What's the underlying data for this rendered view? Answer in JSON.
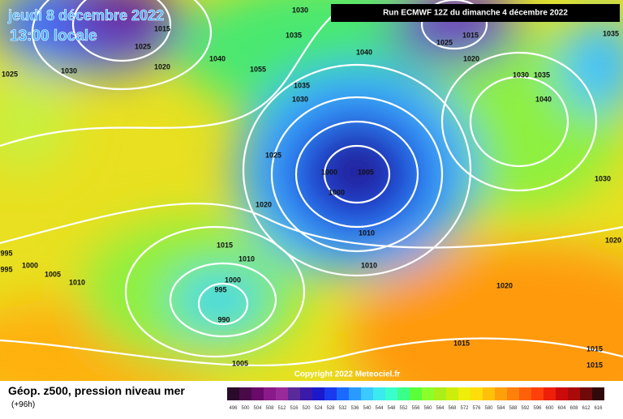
{
  "header": {
    "date": "jeudi 8 décembre 2022",
    "time": "13:00 locale",
    "run": "Run ECMWF 12Z du dimanche 4 décembre 2022"
  },
  "copyright": "Copyright 2022 Meteociel.fr",
  "footer": {
    "title": "Géop. z500, pression niveau mer",
    "lead": "(+96h)"
  },
  "isobars": [
    "1030",
    "1035",
    "1015",
    "1025",
    "1020",
    "1030",
    "1025",
    "1040",
    "1055",
    "1040",
    "1025",
    "1015",
    "1020",
    "1035",
    "1030",
    "1035",
    "1040",
    "1035",
    "1030",
    "1025",
    "1020",
    "1000",
    "1005",
    "1000",
    "1010",
    "1030",
    "1020",
    "1015",
    "1010",
    "1010",
    "995",
    "995",
    "1000",
    "1005",
    "1010",
    "1000",
    "995",
    "990",
    "1020",
    "1015",
    "1015",
    "1015",
    "1005"
  ],
  "scale": {
    "labels": [
      496,
      500,
      504,
      508,
      512,
      516,
      520,
      524,
      528,
      532,
      536,
      540,
      544,
      548,
      552,
      556,
      560,
      564,
      568,
      572,
      576,
      580,
      584,
      588,
      592,
      596,
      600,
      604,
      608,
      612,
      616
    ],
    "colors": [
      "#2a0a2a",
      "#4a0a4a",
      "#6a0a6a",
      "#8a1a8a",
      "#9a2a9a",
      "#5a2a9a",
      "#3a1aaa",
      "#1a1acc",
      "#1a3aee",
      "#1a6aff",
      "#2a9aff",
      "#3acaff",
      "#3aeaee",
      "#3affcc",
      "#3aff8a",
      "#5aff3a",
      "#8aff2a",
      "#aaee1a",
      "#ccee0a",
      "#eeee0a",
      "#ffdd0a",
      "#ffc00a",
      "#ffa00a",
      "#ff800a",
      "#ff600a",
      "#ff400a",
      "#ee200a",
      "#cc0a0a",
      "#aa0a0a",
      "#700a0a",
      "#300a0a"
    ]
  }
}
